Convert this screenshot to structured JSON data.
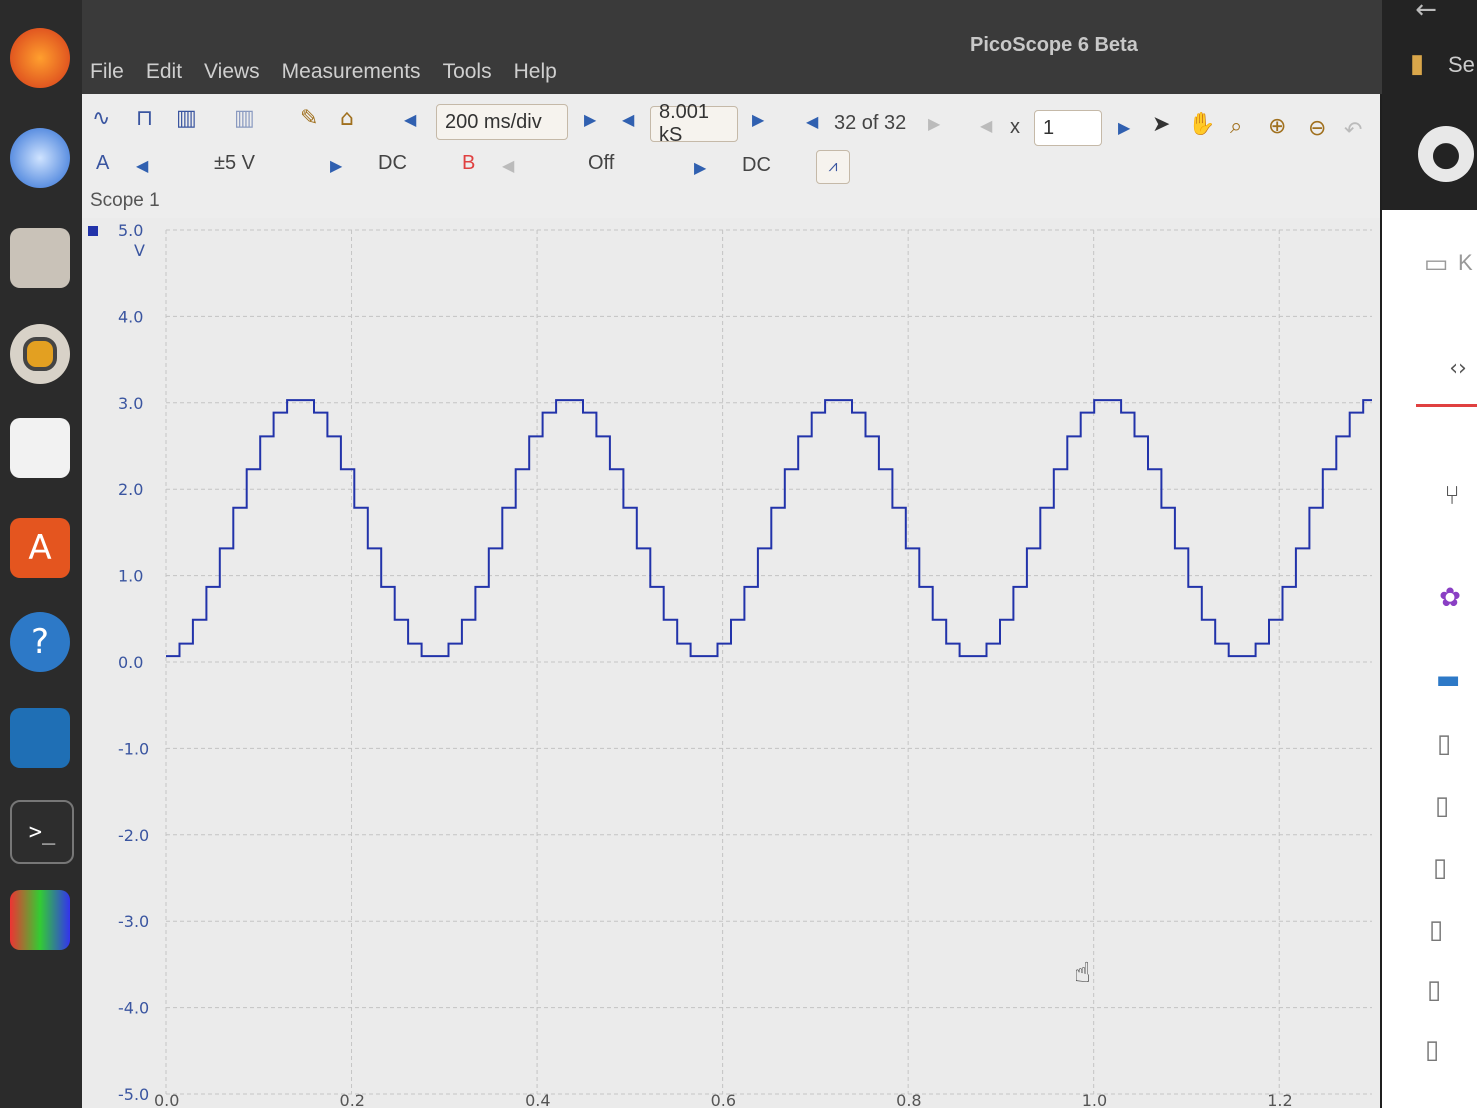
{
  "app": {
    "title": "PicoScope 6 Beta"
  },
  "menu": [
    "File",
    "Edit",
    "Views",
    "Measurements",
    "Tools",
    "Help"
  ],
  "toolbar": {
    "timebase": "200 ms/div",
    "samples": "8.001 kS",
    "buffer": "32 of 32",
    "zoom_label": "x",
    "zoom_value": "1"
  },
  "channels": {
    "a_label": "A",
    "a_range": "±5 V",
    "a_coupling": "DC",
    "b_label": "B",
    "b_range": "Off",
    "b_coupling": "DC"
  },
  "scope": {
    "title": "Scope 1",
    "y_unit": "V"
  },
  "right_panel": {
    "search_text": "Se",
    "kb_text": "K"
  },
  "colors": {
    "trace": "#2233aa",
    "accent": "#3a55a0",
    "channel_b": "#e04040"
  },
  "chart_data": {
    "type": "line",
    "title": "",
    "xlabel": "",
    "ylabel": "V",
    "ylim": [
      -5.0,
      5.0
    ],
    "xlim": [
      0.0,
      1.3
    ],
    "yticks": [
      "5.0",
      "4.0",
      "3.0",
      "2.0",
      "1.0",
      "0.0",
      "-1.0",
      "-2.0",
      "-3.0",
      "-4.0",
      "-5.0"
    ],
    "xticks": [
      "0.0",
      "0.2",
      "0.4",
      "0.6",
      "0.8",
      "1.0",
      "1.2"
    ],
    "grid": true,
    "series": [
      {
        "waveform": "stepped sine",
        "period_s": 0.29,
        "min_v": 0.05,
        "max_v": 3.05,
        "step_count_per_half_cycle": 10
      }
    ]
  }
}
